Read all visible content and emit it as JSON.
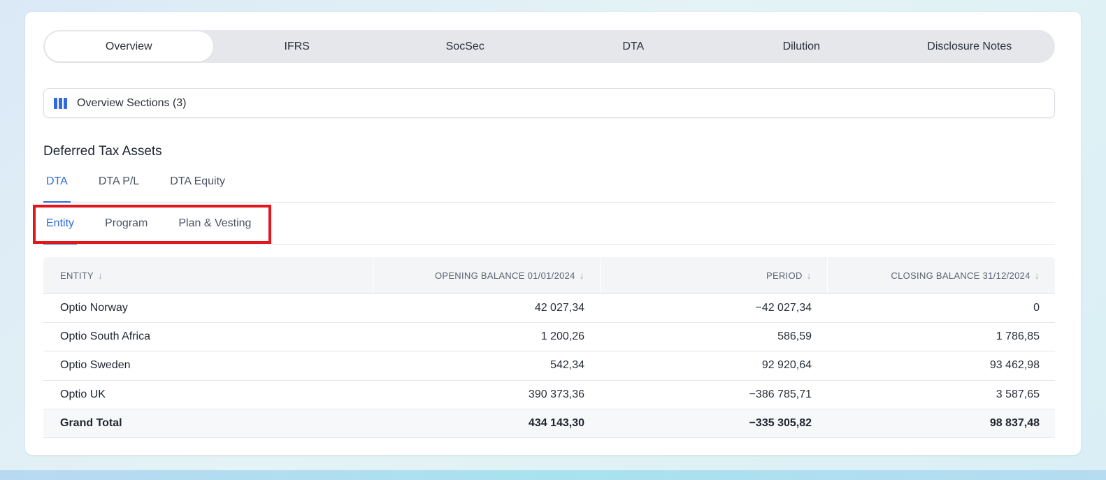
{
  "top_tabs": [
    {
      "label": "Overview",
      "active": true
    },
    {
      "label": "IFRS",
      "active": false
    },
    {
      "label": "SocSec",
      "active": false
    },
    {
      "label": "DTA",
      "active": false
    },
    {
      "label": "Dilution",
      "active": false
    },
    {
      "label": "Disclosure Notes",
      "active": false
    }
  ],
  "sections_button": {
    "label": "Overview Sections (3)",
    "icon": "columns-icon"
  },
  "section_title": "Deferred Tax Assets",
  "dta_tabs": [
    {
      "label": "DTA",
      "active": true
    },
    {
      "label": "DTA P/L",
      "active": false
    },
    {
      "label": "DTA Equity",
      "active": false
    }
  ],
  "group_tabs": [
    {
      "label": "Entity",
      "active": true
    },
    {
      "label": "Program",
      "active": false
    },
    {
      "label": "Plan & Vesting",
      "active": false
    }
  ],
  "table": {
    "headers": [
      "ENTITY",
      "OPENING BALANCE 01/01/2024",
      "PERIOD",
      "CLOSING BALANCE 31/12/2024"
    ],
    "sort_icon": "arrow-down-icon",
    "rows": [
      [
        "Optio Norway",
        "42 027,34",
        "−42 027,34",
        "0"
      ],
      [
        "Optio South Africa",
        "1 200,26",
        "586,59",
        "1 786,85"
      ],
      [
        "Optio Sweden",
        "542,34",
        "92 920,64",
        "93 462,98"
      ],
      [
        "Optio UK",
        "390 373,36",
        "−386 785,71",
        "3 587,65"
      ]
    ],
    "total": [
      "Grand Total",
      "434 143,30",
      "−335 305,82",
      "98 837,48"
    ]
  },
  "colors": {
    "accent": "#2f6bdc",
    "highlight": "#e3161c"
  }
}
